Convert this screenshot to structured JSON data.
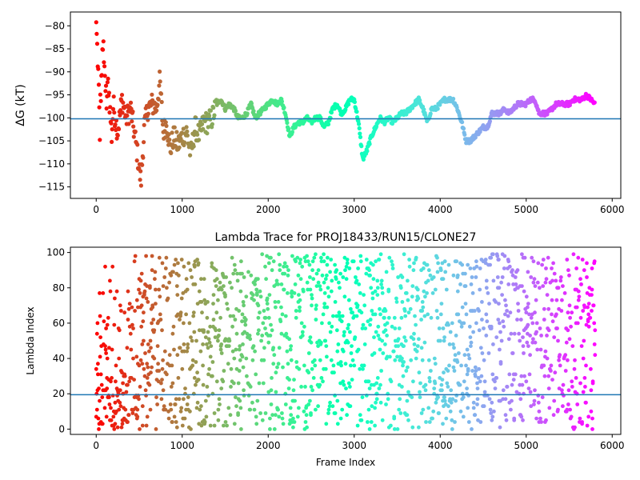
{
  "chart_data": [
    {
      "type": "scatter",
      "title": "",
      "xlabel": "",
      "ylabel": "ΔG (kT)",
      "xlim": [
        -300,
        6100
      ],
      "ylim": [
        -117.5,
        -77
      ],
      "xticks": [
        0,
        1000,
        2000,
        3000,
        4000,
        5000,
        6000
      ],
      "yticks": [
        -80,
        -85,
        -90,
        -95,
        -100,
        -105,
        -110,
        -115
      ],
      "xtick_labels": [
        "0",
        "1000",
        "2000",
        "3000",
        "4000",
        "5000",
        "6000"
      ],
      "ytick_labels": [
        "−80",
        "−85",
        "−90",
        "−95",
        "−100",
        "−105",
        "−110",
        "−115"
      ],
      "reference_line": -100.2,
      "reference_color": "#1f77b4",
      "colormap": "rainbow (color follows frame index, red at 0 to violet at 5800)",
      "x_range_frames": [
        0,
        5800
      ],
      "trace_keyframes": [
        [
          0,
          -80
        ],
        [
          20,
          -88
        ],
        [
          40,
          -100
        ],
        [
          60,
          -92
        ],
        [
          80,
          -84
        ],
        [
          100,
          -90
        ],
        [
          120,
          -97
        ],
        [
          140,
          -92
        ],
        [
          160,
          -98
        ],
        [
          180,
          -104
        ],
        [
          200,
          -97
        ],
        [
          220,
          -100
        ],
        [
          250,
          -103
        ],
        [
          300,
          -96
        ],
        [
          350,
          -100
        ],
        [
          400,
          -98
        ],
        [
          450,
          -104
        ],
        [
          480,
          -108
        ],
        [
          520,
          -114
        ],
        [
          560,
          -102
        ],
        [
          600,
          -98
        ],
        [
          650,
          -97
        ],
        [
          700,
          -98
        ],
        [
          740,
          -92
        ],
        [
          780,
          -103
        ],
        [
          820,
          -101
        ],
        [
          860,
          -107
        ],
        [
          900,
          -104
        ],
        [
          950,
          -106
        ],
        [
          1000,
          -104
        ],
        [
          1050,
          -103
        ],
        [
          1100,
          -108
        ],
        [
          1150,
          -102
        ],
        [
          1200,
          -104
        ],
        [
          1250,
          -101
        ],
        [
          1300,
          -101
        ],
        [
          1350,
          -100
        ],
        [
          1400,
          -97
        ],
        [
          1450,
          -96
        ],
        [
          1500,
          -98
        ],
        [
          1550,
          -97
        ],
        [
          1600,
          -98
        ],
        [
          1650,
          -100
        ],
        [
          1700,
          -100
        ],
        [
          1750,
          -99
        ],
        [
          1800,
          -97
        ],
        [
          1850,
          -100
        ],
        [
          1900,
          -99
        ],
        [
          1950,
          -98
        ],
        [
          2000,
          -97
        ],
        [
          2050,
          -96
        ],
        [
          2100,
          -97
        ],
        [
          2150,
          -96
        ],
        [
          2200,
          -99
        ],
        [
          2250,
          -104
        ],
        [
          2300,
          -102
        ],
        [
          2350,
          -101
        ],
        [
          2400,
          -101
        ],
        [
          2450,
          -100
        ],
        [
          2500,
          -101
        ],
        [
          2550,
          -100
        ],
        [
          2600,
          -100
        ],
        [
          2650,
          -102
        ],
        [
          2700,
          -101
        ],
        [
          2750,
          -98
        ],
        [
          2800,
          -97
        ],
        [
          2850,
          -99
        ],
        [
          2900,
          -98
        ],
        [
          2950,
          -96
        ],
        [
          3000,
          -96
        ],
        [
          3050,
          -101
        ],
        [
          3100,
          -109
        ],
        [
          3150,
          -107
        ],
        [
          3200,
          -104
        ],
        [
          3250,
          -102
        ],
        [
          3300,
          -100
        ],
        [
          3350,
          -101
        ],
        [
          3400,
          -100
        ],
        [
          3450,
          -101
        ],
        [
          3500,
          -100
        ],
        [
          3550,
          -99
        ],
        [
          3600,
          -99
        ],
        [
          3650,
          -98
        ],
        [
          3700,
          -97
        ],
        [
          3750,
          -96
        ],
        [
          3800,
          -98
        ],
        [
          3850,
          -101
        ],
        [
          3900,
          -98
        ],
        [
          3950,
          -98
        ],
        [
          4000,
          -97
        ],
        [
          4050,
          -96
        ],
        [
          4100,
          -96
        ],
        [
          4150,
          -96
        ],
        [
          4200,
          -98
        ],
        [
          4250,
          -101
        ],
        [
          4300,
          -105
        ],
        [
          4350,
          -105
        ],
        [
          4400,
          -104
        ],
        [
          4450,
          -103
        ],
        [
          4500,
          -102
        ],
        [
          4550,
          -102
        ],
        [
          4600,
          -99
        ],
        [
          4650,
          -99
        ],
        [
          4700,
          -99
        ],
        [
          4750,
          -98
        ],
        [
          4800,
          -99
        ],
        [
          4850,
          -98
        ],
        [
          4900,
          -97
        ],
        [
          4950,
          -97
        ],
        [
          5000,
          -97
        ],
        [
          5050,
          -96
        ],
        [
          5100,
          -96
        ],
        [
          5150,
          -99
        ],
        [
          5200,
          -99
        ],
        [
          5250,
          -99
        ],
        [
          5300,
          -98
        ],
        [
          5350,
          -97
        ],
        [
          5400,
          -97
        ],
        [
          5450,
          -97
        ],
        [
          5500,
          -97
        ],
        [
          5550,
          -96
        ],
        [
          5600,
          -96
        ],
        [
          5650,
          -96
        ],
        [
          5700,
          -95
        ],
        [
          5750,
          -96
        ],
        [
          5800,
          -97
        ]
      ]
    },
    {
      "type": "scatter",
      "title": "Lambda Trace for PROJ18433/RUN15/CLONE27",
      "xlabel": "Frame Index",
      "ylabel": "Lambda Index",
      "xlim": [
        -300,
        6100
      ],
      "ylim": [
        -3,
        103
      ],
      "xticks": [
        0,
        1000,
        2000,
        3000,
        4000,
        5000,
        6000
      ],
      "yticks": [
        0,
        20,
        40,
        60,
        80,
        100
      ],
      "xtick_labels": [
        "0",
        "1000",
        "2000",
        "3000",
        "4000",
        "5000",
        "6000"
      ],
      "ytick_labels": [
        "0",
        "20",
        "40",
        "60",
        "80",
        "100"
      ],
      "reference_line": 19.5,
      "reference_color": "#1f77b4",
      "colormap": "rainbow (color follows frame index, red at 0 to violet at 5800)",
      "x_range_frames": [
        0,
        5800
      ],
      "lambda_range": [
        0,
        99
      ]
    }
  ]
}
